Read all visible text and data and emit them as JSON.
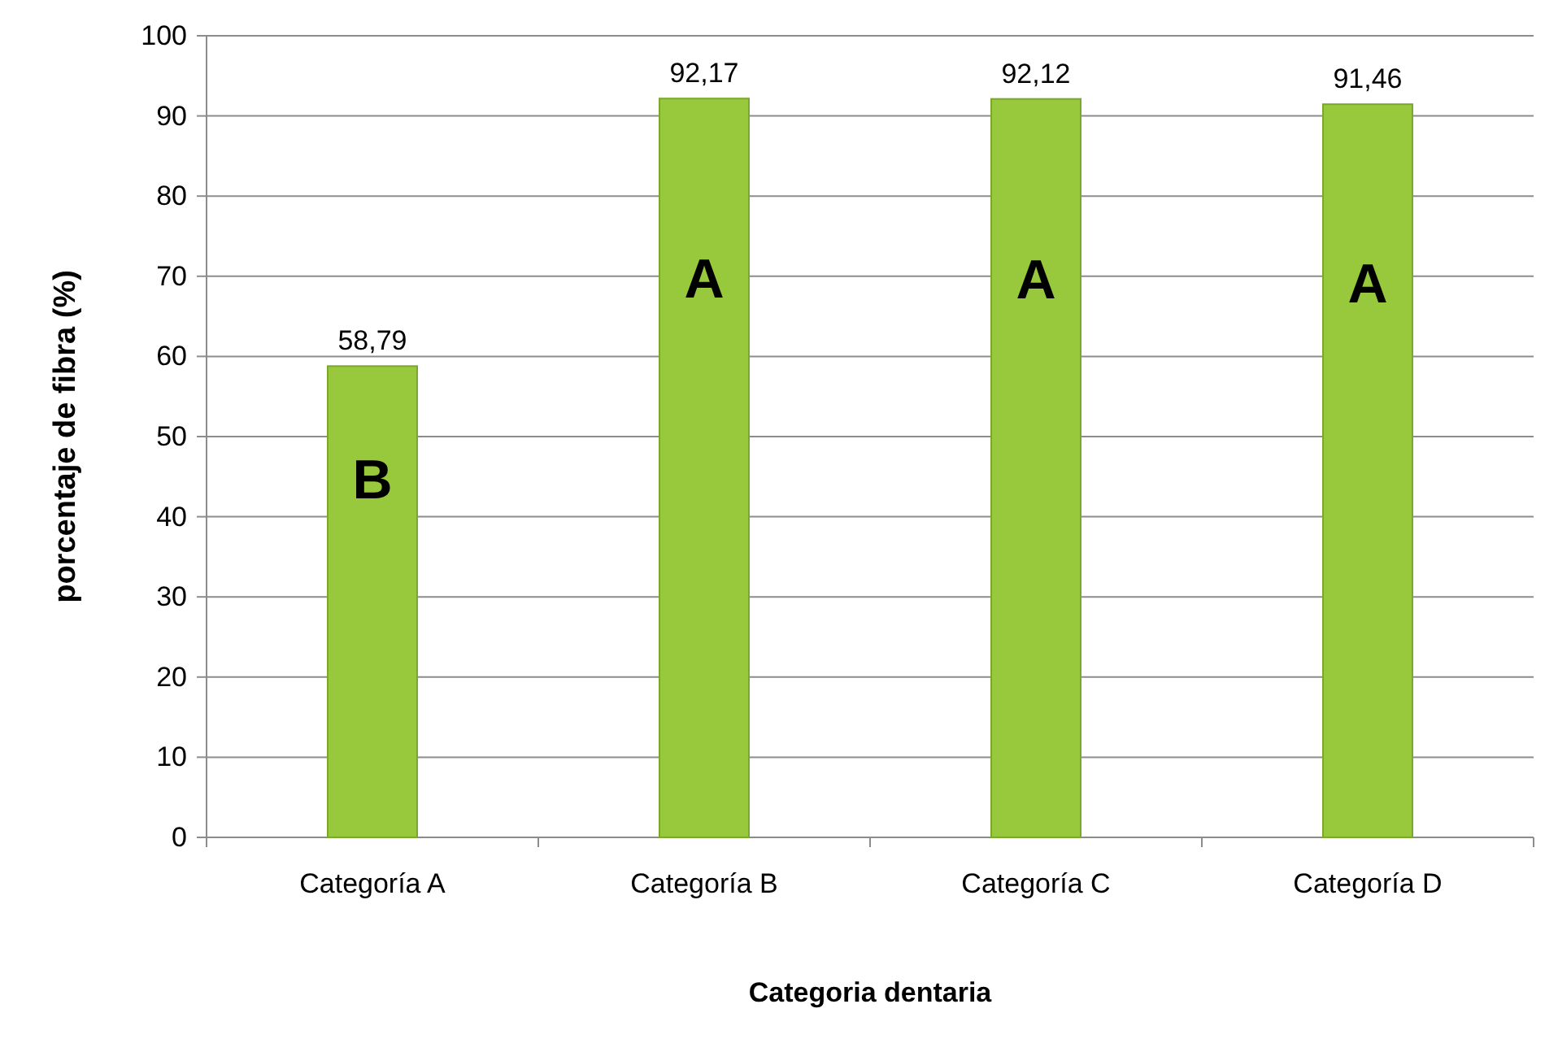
{
  "chart_data": {
    "type": "bar",
    "xlabel": "Categoria dentaria",
    "ylabel": "porcentaje de fibra (%)",
    "categories": [
      "Categoría A",
      "Categoría B",
      "Categoría C",
      "Categoría D"
    ],
    "values": [
      58.79,
      92.17,
      92.12,
      91.46
    ],
    "value_labels": [
      "58,79",
      "92,17",
      "92,12",
      "91,46"
    ],
    "color": "#98c93c",
    "ylim": [
      0,
      100
    ],
    "yticks": [
      0,
      10,
      20,
      30,
      40,
      50,
      60,
      70,
      80,
      90,
      100
    ],
    "grid": "y",
    "annotations": [
      "B",
      "A",
      "A",
      "A"
    ]
  }
}
